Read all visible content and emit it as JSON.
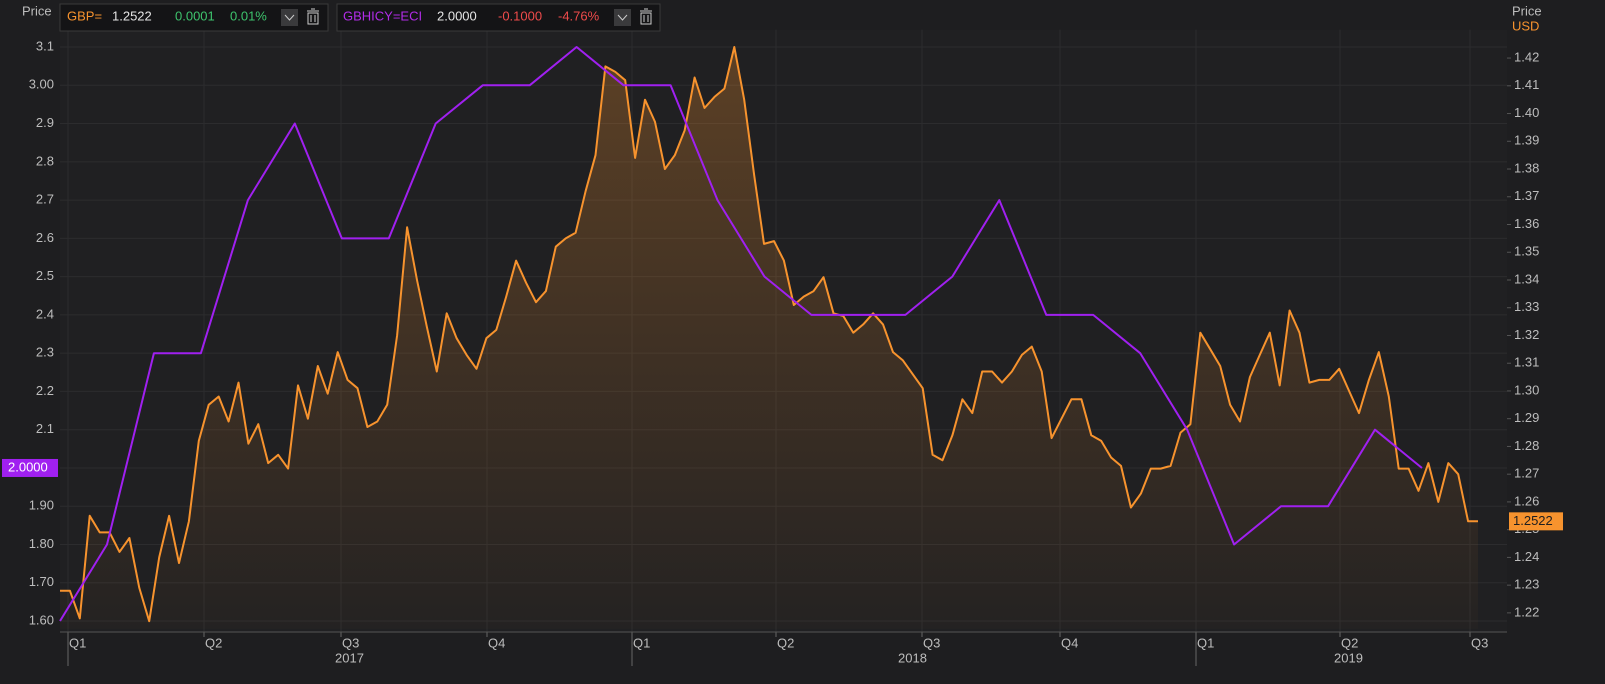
{
  "chart_data": {
    "type": "line",
    "y_axis_title": "Price",
    "y2_axis_title": "Price",
    "y2_unit": "USD",
    "ylim": [
      1.58,
      3.14
    ],
    "yticks": [
      {
        "value": 1.6,
        "label": "1.60"
      },
      {
        "value": 1.7,
        "label": "1.70"
      },
      {
        "value": 1.8,
        "label": "1.80"
      },
      {
        "value": 1.9,
        "label": "1.90"
      },
      {
        "value": 2.0,
        "label": "2.00"
      },
      2.1,
      2.2,
      2.3,
      2.4,
      2.5,
      2.6,
      2.7,
      2.8,
      2.9,
      {
        "value": 3.0,
        "label": "3.00"
      },
      3.1
    ],
    "y2lim": [
      1.2143,
      1.4295
    ],
    "y2ticks": [
      1.22,
      1.23,
      1.24,
      1.25,
      1.26,
      1.27,
      1.28,
      1.29,
      {
        "value": 1.3,
        "label": "1.30"
      },
      1.31,
      1.32,
      1.33,
      1.34,
      1.35,
      1.36,
      1.37,
      1.38,
      1.39,
      {
        "value": 1.4,
        "label": "1.40"
      },
      1.41,
      1.42
    ],
    "xticks": [
      "Q1",
      "Q2",
      "Q3",
      "Q4",
      "Q1",
      "Q2",
      "Q3",
      "Q4",
      "Q1",
      "Q2",
      "Q3"
    ],
    "years": [
      "2017",
      "2018",
      "2019"
    ],
    "grid": true,
    "series": [
      {
        "name": "GBP=",
        "color": "#f7932e",
        "axis": "y2",
        "area": true,
        "last": "1.2522",
        "change": "0.0001",
        "change_pct": "0.01%",
        "values": [
          1.228,
          1.228,
          1.218,
          1.255,
          1.249,
          1.249,
          1.242,
          1.247,
          1.229,
          1.217,
          1.24,
          1.255,
          1.238,
          1.253,
          1.282,
          1.295,
          1.298,
          1.289,
          1.303,
          1.281,
          1.288,
          1.274,
          1.277,
          1.272,
          1.302,
          1.29,
          1.309,
          1.299,
          1.314,
          1.304,
          1.301,
          1.287,
          1.289,
          1.295,
          1.32,
          1.359,
          1.34,
          1.323,
          1.307,
          1.328,
          1.319,
          1.313,
          1.308,
          1.319,
          1.322,
          1.334,
          1.347,
          1.339,
          1.332,
          1.336,
          1.352,
          1.355,
          1.357,
          1.372,
          1.385,
          1.417,
          1.415,
          1.412,
          1.384,
          1.405,
          1.397,
          1.38,
          1.385,
          1.394,
          1.413,
          1.402,
          1.406,
          1.409,
          1.424,
          1.405,
          1.378,
          1.353,
          1.354,
          1.347,
          1.331,
          1.334,
          1.336,
          1.341,
          1.328,
          1.327,
          1.321,
          1.324,
          1.328,
          1.324,
          1.314,
          1.311,
          1.306,
          1.301,
          1.277,
          1.275,
          1.284,
          1.297,
          1.292,
          1.307,
          1.307,
          1.303,
          1.307,
          1.313,
          1.316,
          1.307,
          1.283,
          1.29,
          1.297,
          1.297,
          1.284,
          1.282,
          1.276,
          1.273,
          1.258,
          1.263,
          1.272,
          1.272,
          1.273,
          1.285,
          1.288,
          1.321,
          1.315,
          1.309,
          1.295,
          1.289,
          1.305,
          1.313,
          1.321,
          1.302,
          1.329,
          1.321,
          1.303,
          1.304,
          1.304,
          1.308,
          1.3,
          1.292,
          1.304,
          1.314,
          1.298,
          1.272,
          1.272,
          1.264,
          1.274,
          1.26,
          1.274,
          1.27,
          1.253,
          1.253
        ]
      },
      {
        "name": "GBHICY=ECI",
        "color": "#a020f0",
        "last": "2.0000",
        "change": "-0.1000",
        "change_pct": "-4.76%",
        "values": [
          1.6,
          1.8,
          2.3,
          2.3,
          2.7,
          2.9,
          2.6,
          2.6,
          2.9,
          3.0,
          3.0,
          3.1,
          3.0,
          3.0,
          2.7,
          2.5,
          2.4,
          2.4,
          2.4,
          2.5,
          2.7,
          2.4,
          2.4,
          2.3,
          2.1,
          1.8,
          1.9,
          1.9,
          2.1,
          2.0
        ]
      }
    ]
  }
}
